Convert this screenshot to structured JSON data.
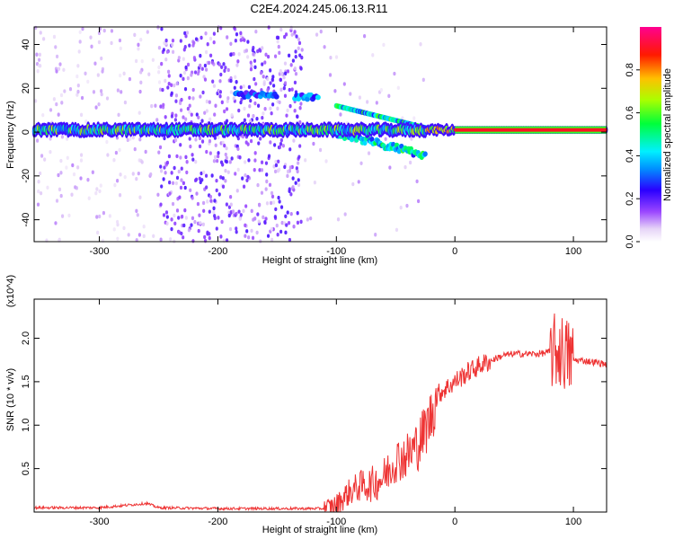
{
  "title": "C2E4.2024.245.06.13.R11",
  "chart_data": [
    {
      "type": "heatmap",
      "xlabel": "Height of straight line (km)",
      "ylabel": "Frequency (Hz)",
      "xlim": [
        -355,
        128
      ],
      "ylim": [
        -50,
        48
      ],
      "xticks": [
        -300,
        -200,
        -100,
        0,
        100
      ],
      "xtick_labels": [
        "-300",
        "-200",
        "-100",
        "0",
        "100"
      ],
      "yticks": [
        40,
        20,
        0,
        -20,
        -40
      ],
      "ytick_labels": [
        "40",
        "20",
        "0",
        "-20",
        "-40"
      ],
      "colorbar": {
        "label": "Normalized spectral amplitude",
        "range": [
          0,
          1
        ],
        "ticks": [
          0.0,
          0.2,
          0.4,
          0.6,
          0.8
        ],
        "tick_labels": [
          "0.0",
          "0.2",
          "0.4",
          "0.6",
          "0.8"
        ],
        "colormap": "rainbow (white-violet-blue-cyan-green-yellow-red-magenta)"
      },
      "main_tone": {
        "frequency_hz": 1,
        "description": "Continuous carrier line near 0 Hz from -355 km to 128 km; high amplitude (red) above 0 km"
      },
      "features": [
        {
          "x_range": [
            -135,
            -115
          ],
          "frequency_hz": 16,
          "amplitude": 0.35
        },
        {
          "x_range": [
            -185,
            -150
          ],
          "frequency_hz": 17,
          "amplitude": 0.3
        },
        {
          "x_range": [
            -100,
            -25
          ],
          "frequency_hz_range": [
            -8,
            12
          ],
          "amplitude": 0.5
        }
      ],
      "noise_region_x": [
        -250,
        -130
      ],
      "grid": false
    },
    {
      "type": "line",
      "xlabel": "Height of straight line (km)",
      "ylabel": "SNR (10 * v/v)",
      "y_multiplier": "(x10^4)",
      "xlim": [
        -355,
        128
      ],
      "ylim": [
        0,
        2.45
      ],
      "xticks": [
        -300,
        -200,
        -100,
        0,
        100
      ],
      "xtick_labels": [
        "-300",
        "-200",
        "-100",
        "0",
        "100"
      ],
      "yticks": [
        0.5,
        1.0,
        1.5,
        2.0
      ],
      "ytick_labels": [
        "0.5",
        "1.0",
        "1.5",
        "2.0"
      ],
      "series": [
        {
          "color": "#ee3333",
          "x": [
            -355,
            -300,
            -260,
            -250,
            -200,
            -150,
            -110,
            -100,
            -90,
            -80,
            -70,
            -60,
            -50,
            -40,
            -30,
            -20,
            -15,
            -10,
            0,
            10,
            20,
            30,
            40,
            50,
            60,
            70,
            80,
            90,
            95,
            100,
            110,
            120,
            128
          ],
          "y": [
            0.05,
            0.05,
            0.1,
            0.05,
            0.04,
            0.04,
            0.04,
            0.08,
            0.22,
            0.3,
            0.32,
            0.4,
            0.6,
            0.65,
            0.8,
            1.1,
            1.35,
            1.4,
            1.5,
            1.6,
            1.68,
            1.74,
            1.8,
            1.82,
            1.82,
            1.82,
            1.84,
            1.85,
            1.8,
            1.75,
            1.74,
            1.72,
            1.7
          ]
        }
      ],
      "grid": false
    }
  ]
}
